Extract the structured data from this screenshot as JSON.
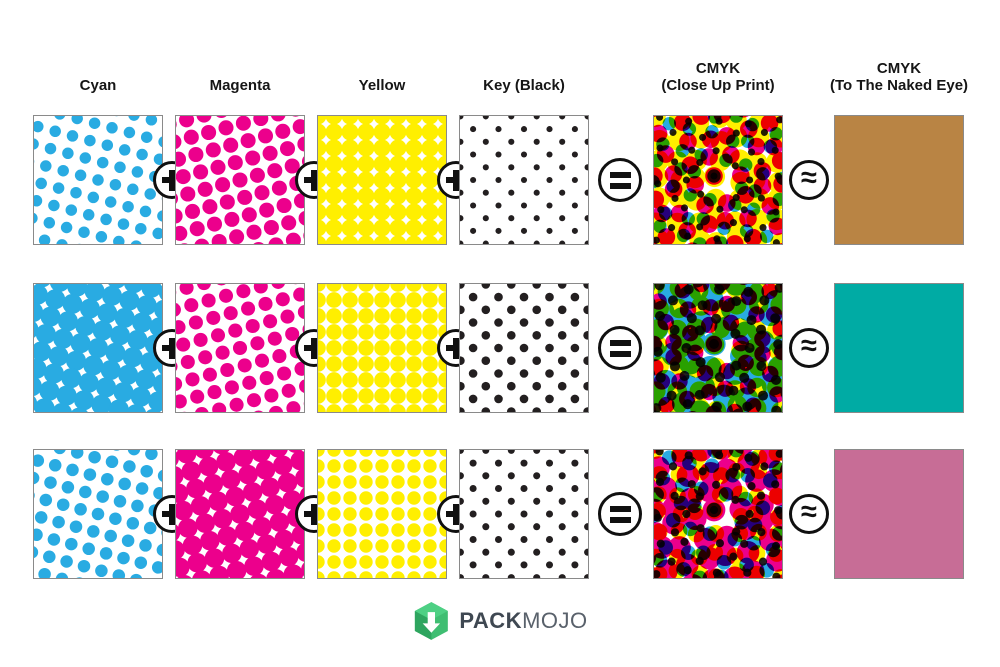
{
  "columns": [
    {
      "label": "Cyan"
    },
    {
      "label": "Magenta"
    },
    {
      "label": "Yellow"
    },
    {
      "label": "Key (Black)"
    },
    {
      "line1": "CMYK",
      "line2": "(Close Up Print)"
    },
    {
      "line1": "CMYK",
      "line2": "(To The Naked Eye)"
    }
  ],
  "operators": {
    "plus": "+",
    "equals": "=",
    "approx": "≈"
  },
  "inks": {
    "cyan": "#29ABE2",
    "magenta": "#EC008C",
    "yellow": "#FFEF00",
    "black": "#231F20"
  },
  "halftone_screen_angles": {
    "cyan": 15,
    "magenta": 75,
    "yellow": 0,
    "black": 45
  },
  "rows": [
    {
      "name": "mix-row-1",
      "coverage": {
        "c": 32,
        "m": 55,
        "y": 88,
        "k": 9
      },
      "result_color": "#B98444"
    },
    {
      "name": "mix-row-2",
      "coverage": {
        "c": 97,
        "m": 48,
        "y": 75,
        "k": 18
      },
      "result_color": "#00ABA4"
    },
    {
      "name": "mix-row-3",
      "coverage": {
        "c": 38,
        "m": 92,
        "y": 55,
        "k": 12
      },
      "result_color": "#C76D96"
    }
  ],
  "logo": {
    "pack": "PACK",
    "mojo": "MOJO",
    "icon_color": "#3FBE72",
    "icon_dark": "#2EA55F"
  }
}
